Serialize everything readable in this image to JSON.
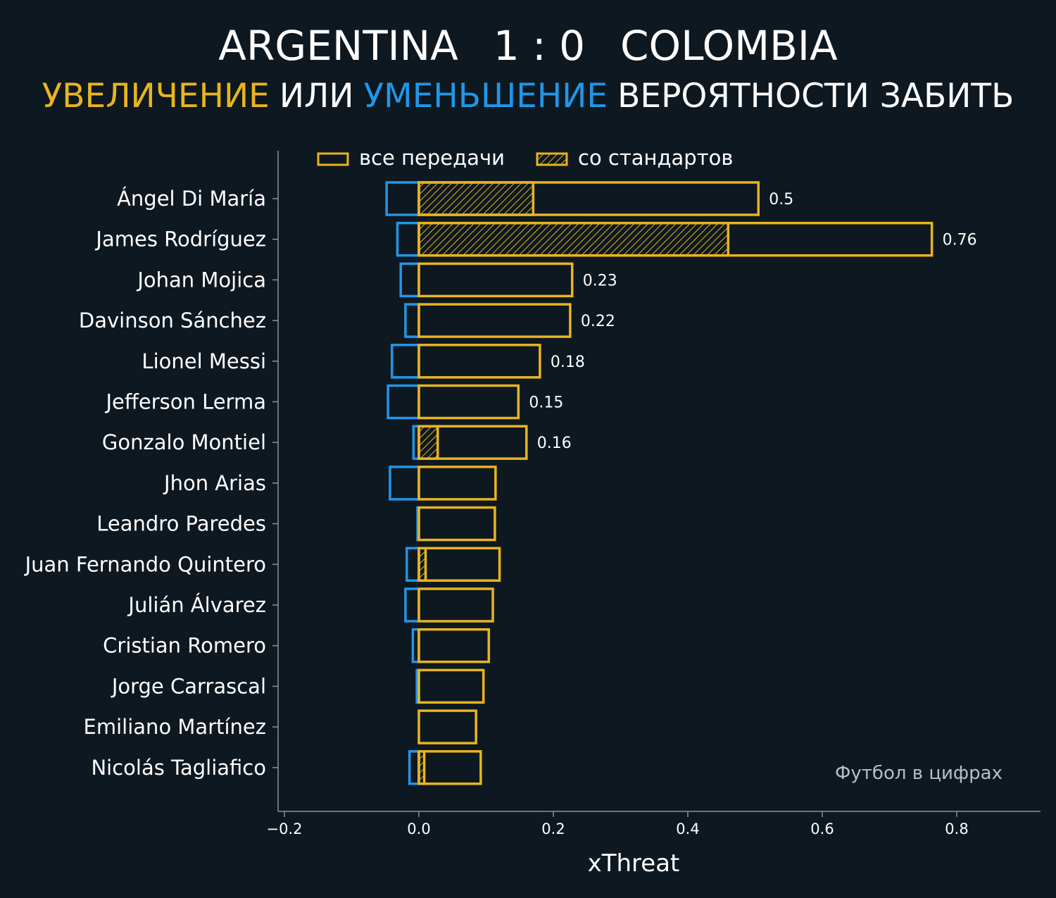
{
  "header": {
    "home_team": "ARGENTINA",
    "score": "1 : 0",
    "away_team": "COLOMBIA",
    "subtitle_increase": "УВЕЛИЧЕНИЕ",
    "subtitle_or": "ИЛИ",
    "subtitle_decrease": "УМЕНЬШЕНИЕ",
    "subtitle_rest": "ВЕРОЯТНОСТИ ЗАБИТЬ"
  },
  "credit": "Футбол в цифрах",
  "colors": {
    "background": "#0e1820",
    "increase": "#e8b420",
    "decrease": "#2196e8",
    "axis": "#8a9399"
  },
  "chart_data": {
    "type": "bar",
    "orientation": "horizontal",
    "xlabel": "xThreat",
    "xlim": [
      -0.21,
      0.925
    ],
    "xticks": [
      "−0.2",
      "0.0",
      "0.2",
      "0.4",
      "0.6",
      "0.8"
    ],
    "xtick_values": [
      -0.2,
      0.0,
      0.2,
      0.4,
      0.6,
      0.8
    ],
    "legend": {
      "position": "top",
      "all_passes": "все передачи",
      "set_pieces": "со стандартов"
    },
    "players": [
      {
        "name": "Ángel Di María",
        "all_passes": 0.505,
        "set_pieces": 0.17,
        "negative": -0.048,
        "label": "0.5"
      },
      {
        "name": "James Rodríguez",
        "all_passes": 0.763,
        "set_pieces": 0.46,
        "negative": -0.032,
        "label": "0.76"
      },
      {
        "name": "Johan Mojica",
        "all_passes": 0.228,
        "set_pieces": 0.0,
        "negative": -0.027,
        "label": "0.23"
      },
      {
        "name": "Davinson Sánchez",
        "all_passes": 0.225,
        "set_pieces": 0.0,
        "negative": -0.02,
        "label": "0.22"
      },
      {
        "name": "Lionel Messi",
        "all_passes": 0.18,
        "set_pieces": 0.0,
        "negative": -0.04,
        "label": "0.18"
      },
      {
        "name": "Jefferson Lerma",
        "all_passes": 0.148,
        "set_pieces": 0.0,
        "negative": -0.046,
        "label": "0.15"
      },
      {
        "name": "Gonzalo Montiel",
        "all_passes": 0.16,
        "set_pieces": 0.028,
        "negative": -0.008,
        "label": "0.16"
      },
      {
        "name": "Jhon Arias",
        "all_passes": 0.114,
        "set_pieces": 0.0,
        "negative": -0.043,
        "label": ""
      },
      {
        "name": "Leandro Paredes",
        "all_passes": 0.113,
        "set_pieces": 0.0,
        "negative": -0.002,
        "label": ""
      },
      {
        "name": "Juan Fernando Quintero",
        "all_passes": 0.12,
        "set_pieces": 0.01,
        "negative": -0.018,
        "label": ""
      },
      {
        "name": "Julián Álvarez",
        "all_passes": 0.11,
        "set_pieces": 0.0,
        "negative": -0.02,
        "label": ""
      },
      {
        "name": "Cristian Romero",
        "all_passes": 0.104,
        "set_pieces": 0.0,
        "negative": -0.009,
        "label": ""
      },
      {
        "name": "Jorge Carrascal",
        "all_passes": 0.096,
        "set_pieces": 0.0,
        "negative": -0.003,
        "label": ""
      },
      {
        "name": "Emiliano Martínez",
        "all_passes": 0.085,
        "set_pieces": 0.0,
        "negative": 0.0,
        "label": ""
      },
      {
        "name": "Nicolás Tagliafico",
        "all_passes": 0.092,
        "set_pieces": 0.008,
        "negative": -0.014,
        "label": ""
      }
    ]
  }
}
